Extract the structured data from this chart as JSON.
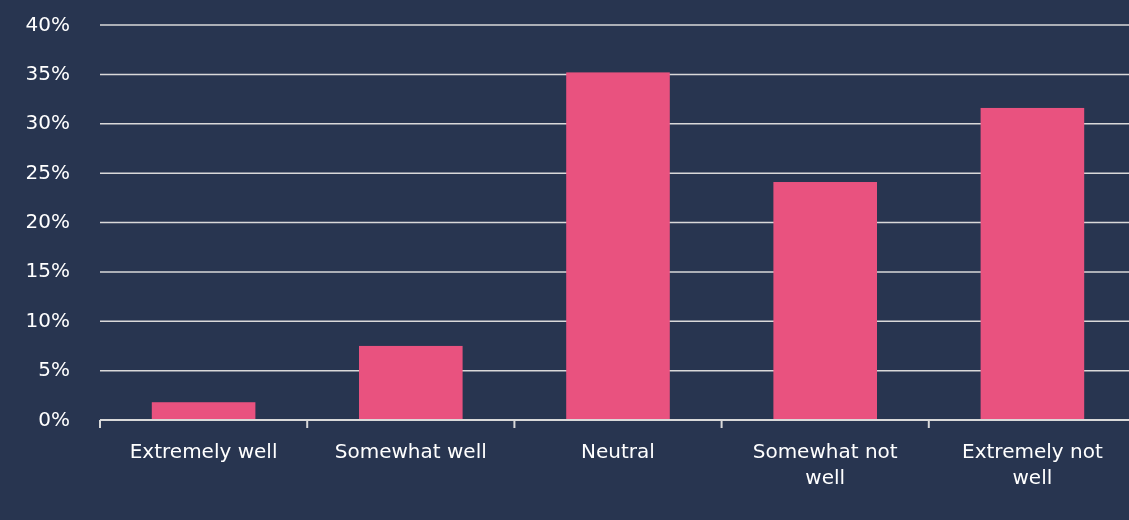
{
  "chart_data": {
    "type": "bar",
    "categories": [
      "Extremely well",
      "Somewhat well",
      "Neutral",
      "Somewhat not well",
      "Extremely not well"
    ],
    "values": [
      1.8,
      7.5,
      35.2,
      24.1,
      31.6
    ],
    "color": "#e9527f",
    "ylim": [
      0,
      40
    ],
    "yticks": [
      {
        "value": 0,
        "label": "0%"
      },
      {
        "value": 5,
        "label": "5%"
      },
      {
        "value": 10,
        "label": "10%"
      },
      {
        "value": 15,
        "label": "15%"
      },
      {
        "value": 20,
        "label": "20%"
      },
      {
        "value": 25,
        "label": "25%"
      },
      {
        "value": 30,
        "label": "30%"
      },
      {
        "value": 35,
        "label": "35%"
      },
      {
        "value": 40,
        "label": "40%"
      }
    ],
    "grid": "y"
  }
}
